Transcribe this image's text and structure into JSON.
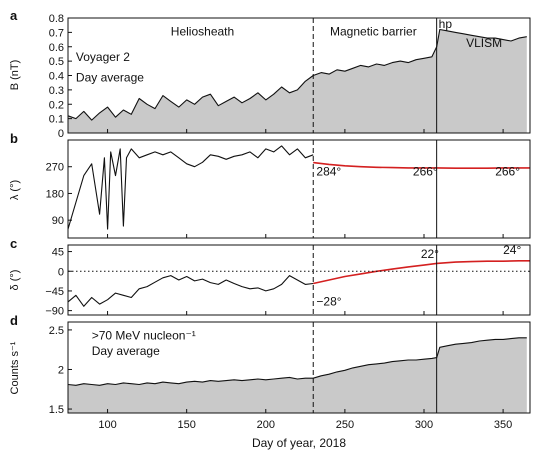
{
  "chart_data": {
    "type": "line",
    "x_range": [
      75,
      367
    ],
    "xlabel": "Day of year, 2018",
    "x_ticks": [
      100,
      150,
      200,
      250,
      300,
      350
    ],
    "event_lines": [
      {
        "x": 230,
        "style": "dashed",
        "label": ""
      },
      {
        "x": 308,
        "style": "solid",
        "label": "hp"
      }
    ],
    "panels": [
      {
        "id": "a",
        "ylabel": "B (nT)",
        "ylim": [
          0,
          0.8
        ],
        "y_ticks": [
          0,
          0.1,
          0.2,
          0.3,
          0.4,
          0.5,
          0.6,
          0.7,
          0.8
        ],
        "filled": true,
        "series": [
          {
            "x": [
              75,
              80,
              85,
              90,
              95,
              100,
              105,
              110,
              115,
              120,
              125,
              130,
              135,
              140,
              145,
              150,
              155,
              160,
              165,
              170,
              175,
              180,
              185,
              190,
              195,
              200,
              205,
              210,
              215,
              220,
              225,
              230,
              235,
              240,
              245,
              250,
              255,
              260,
              265,
              270,
              275,
              280,
              285,
              290,
              295,
              300,
              305,
              308,
              310,
              315,
              320,
              325,
              330,
              335,
              340,
              345,
              350,
              355,
              360,
              365
            ],
            "y": [
              0.12,
              0.1,
              0.15,
              0.09,
              0.14,
              0.18,
              0.11,
              0.16,
              0.13,
              0.24,
              0.2,
              0.17,
              0.26,
              0.22,
              0.18,
              0.23,
              0.2,
              0.25,
              0.27,
              0.19,
              0.22,
              0.25,
              0.21,
              0.24,
              0.28,
              0.23,
              0.27,
              0.32,
              0.28,
              0.3,
              0.36,
              0.4,
              0.42,
              0.41,
              0.44,
              0.43,
              0.45,
              0.47,
              0.46,
              0.48,
              0.47,
              0.49,
              0.5,
              0.49,
              0.51,
              0.52,
              0.53,
              0.6,
              0.72,
              0.71,
              0.7,
              0.69,
              0.68,
              0.67,
              0.66,
              0.66,
              0.65,
              0.64,
              0.66,
              0.67
            ]
          }
        ],
        "annotations": [
          {
            "text": "Heliosheath",
            "x": 160,
            "y": 0.68
          },
          {
            "text": "Magnetic barrier",
            "x": 268,
            "y": 0.68
          },
          {
            "text": "VLISM",
            "x": 338,
            "y": 0.6
          },
          {
            "text": "Voyager 2",
            "x": 80,
            "y": 0.5
          },
          {
            "text": "Day average",
            "x": 80,
            "y": 0.36
          }
        ]
      },
      {
        "id": "b",
        "ylabel": "λ (°)",
        "ylim": [
          30,
          360
        ],
        "y_ticks": [
          90,
          180,
          270
        ],
        "filled": false,
        "series": [
          {
            "x": [
              75,
              80,
              85,
              90,
              95,
              98,
              100,
              102,
              105,
              108,
              110,
              112,
              115,
              120,
              125,
              130,
              135,
              140,
              145,
              150,
              155,
              160,
              165,
              170,
              175,
              180,
              185,
              190,
              195,
              200,
              205,
              210,
              215,
              220,
              225,
              230
            ],
            "y": [
              60,
              150,
              240,
              280,
              110,
              300,
              60,
              320,
              240,
              330,
              70,
              300,
              330,
              300,
              310,
              320,
              310,
              320,
              300,
              280,
              270,
              285,
              310,
              305,
              295,
              305,
              310,
              320,
              300,
              330,
              320,
              340,
              310,
              330,
              300,
              310
            ],
            "color": "#111111"
          },
          {
            "x": [
              230,
              240,
              250,
              260,
              270,
              280,
              290,
              300,
              308,
              320,
              330,
              340,
              350,
              360,
              367
            ],
            "y": [
              284,
              278,
              273,
              270,
              268,
              267,
              266,
              266,
              266,
              265,
              265,
              265,
              266,
              266,
              266
            ],
            "color": "#d42020"
          }
        ],
        "annotations": [
          {
            "text": "284°",
            "x": 232,
            "y": 240
          },
          {
            "text": "266°",
            "x": 293,
            "y": 240
          },
          {
            "text": "266°",
            "x": 345,
            "y": 240
          }
        ]
      },
      {
        "id": "c",
        "ylabel": "δ (°)",
        "ylim": [
          -100,
          60
        ],
        "y_ticks": [
          -90,
          -45,
          0,
          45
        ],
        "filled": false,
        "zero_line": "dotted",
        "series": [
          {
            "x": [
              75,
              80,
              85,
              90,
              95,
              100,
              105,
              110,
              115,
              120,
              125,
              130,
              135,
              140,
              145,
              150,
              155,
              160,
              165,
              170,
              175,
              180,
              185,
              190,
              195,
              200,
              205,
              210,
              215,
              220,
              225,
              230
            ],
            "y": [
              -70,
              -55,
              -80,
              -60,
              -75,
              -65,
              -50,
              -55,
              -60,
              -40,
              -35,
              -25,
              -15,
              -10,
              -20,
              -12,
              -22,
              -18,
              -26,
              -30,
              -20,
              -28,
              -35,
              -40,
              -38,
              -45,
              -40,
              -30,
              -10,
              -20,
              -30,
              -28
            ],
            "color": "#111111"
          },
          {
            "x": [
              230,
              240,
              250,
              260,
              270,
              280,
              290,
              300,
              308,
              320,
              330,
              340,
              350,
              360,
              367
            ],
            "y": [
              -28,
              -20,
              -12,
              -6,
              0,
              5,
              10,
              14,
              18,
              21,
              22,
              23,
              23,
              24,
              24
            ],
            "color": "#d42020"
          }
        ],
        "annotations": [
          {
            "text": "−28°",
            "x": 232,
            "y": -78
          },
          {
            "text": "22°",
            "x": 298,
            "y": 30
          },
          {
            "text": "24°",
            "x": 350,
            "y": 40
          }
        ]
      },
      {
        "id": "d",
        "ylabel": "Counts s⁻¹",
        "ylim": [
          1.45,
          2.6
        ],
        "y_ticks": [
          1.5,
          2.0,
          2.5
        ],
        "filled": true,
        "series": [
          {
            "x": [
              75,
              80,
              85,
              90,
              95,
              100,
              105,
              110,
              115,
              120,
              125,
              130,
              135,
              140,
              145,
              150,
              155,
              160,
              165,
              170,
              175,
              180,
              185,
              190,
              195,
              200,
              205,
              210,
              215,
              220,
              225,
              230,
              235,
              240,
              245,
              250,
              255,
              260,
              265,
              270,
              275,
              280,
              285,
              290,
              295,
              300,
              305,
              308,
              310,
              315,
              320,
              325,
              330,
              335,
              340,
              345,
              350,
              355,
              360,
              365
            ],
            "y": [
              1.81,
              1.8,
              1.82,
              1.81,
              1.8,
              1.82,
              1.81,
              1.83,
              1.82,
              1.81,
              1.83,
              1.82,
              1.84,
              1.83,
              1.82,
              1.84,
              1.85,
              1.84,
              1.86,
              1.85,
              1.86,
              1.87,
              1.86,
              1.87,
              1.88,
              1.87,
              1.88,
              1.89,
              1.9,
              1.88,
              1.89,
              1.89,
              1.92,
              1.94,
              1.97,
              1.99,
              2.02,
              2.04,
              2.06,
              2.07,
              2.08,
              2.1,
              2.11,
              2.12,
              2.12,
              2.13,
              2.14,
              2.15,
              2.28,
              2.3,
              2.32,
              2.33,
              2.34,
              2.36,
              2.37,
              2.38,
              2.38,
              2.39,
              2.4,
              2.4
            ]
          }
        ],
        "annotations": [
          {
            "text": ">70 MeV nucleon⁻¹",
            "x": 90,
            "y": 2.38
          },
          {
            "text": "Day average",
            "x": 90,
            "y": 2.18
          }
        ]
      }
    ]
  }
}
